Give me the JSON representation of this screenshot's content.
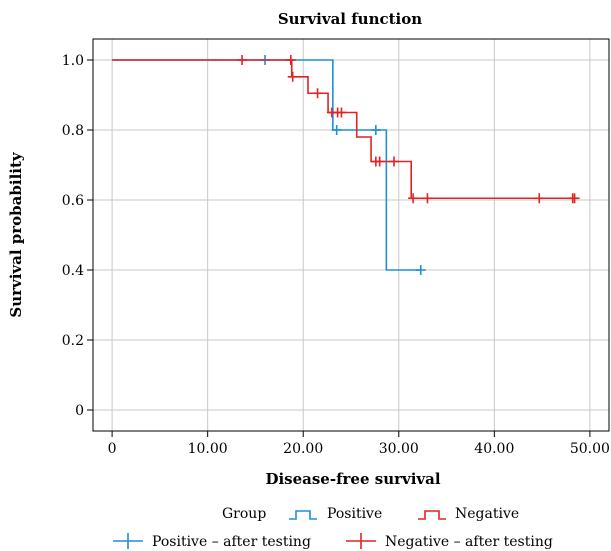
{
  "chart_data": {
    "type": "line",
    "subtype": "kaplan-meier",
    "title": "Survival function",
    "xlabel": "Disease-free survival",
    "ylabel": "Survival probability",
    "xlim": [
      -2,
      52
    ],
    "ylim": [
      -0.06,
      1.06
    ],
    "x_ticks": [
      0,
      10,
      20,
      30,
      40,
      50
    ],
    "x_tick_labels": [
      "0",
      "10.00",
      "20.00",
      "30.00",
      "40.00",
      "50.00"
    ],
    "y_ticks": [
      0,
      0.2,
      0.4,
      0.6,
      0.8,
      1.0
    ],
    "y_tick_labels": [
      "0",
      "0.2",
      "0.4",
      "0.6",
      "0.8",
      "1.0"
    ],
    "grid": true,
    "legend": {
      "position": "bottom",
      "group_title": "Group",
      "line_entries": [
        "Positive",
        "Negative"
      ],
      "censor_entries": [
        "Positive – after testing",
        "Negative – after testing"
      ]
    },
    "series": [
      {
        "name": "Positive",
        "color": "#1f8fd6",
        "steps": [
          [
            0,
            1.0
          ],
          [
            23.1,
            0.8
          ],
          [
            28.7,
            0.4
          ]
        ],
        "end_x": 32.3,
        "censored": [
          [
            16.0,
            1.0
          ],
          [
            23.5,
            0.8
          ],
          [
            27.6,
            0.8
          ],
          [
            32.3,
            0.4
          ]
        ]
      },
      {
        "name": "Negative",
        "color": "#e02424",
        "steps": [
          [
            0,
            1.0
          ],
          [
            18.8,
            0.952
          ],
          [
            20.5,
            0.905
          ],
          [
            22.6,
            0.85
          ],
          [
            25.6,
            0.78
          ],
          [
            27.1,
            0.71
          ],
          [
            31.3,
            0.605
          ]
        ],
        "end_x": 48.4,
        "censored": [
          [
            13.6,
            1.0
          ],
          [
            18.7,
            1.0
          ],
          [
            18.9,
            0.952
          ],
          [
            21.5,
            0.905
          ],
          [
            23.0,
            0.85
          ],
          [
            23.6,
            0.85
          ],
          [
            24.0,
            0.85
          ],
          [
            27.6,
            0.71
          ],
          [
            28.0,
            0.71
          ],
          [
            29.5,
            0.71
          ],
          [
            31.5,
            0.605
          ],
          [
            33.0,
            0.605
          ],
          [
            44.7,
            0.605
          ],
          [
            48.2,
            0.605
          ],
          [
            48.4,
            0.605
          ]
        ]
      }
    ]
  }
}
